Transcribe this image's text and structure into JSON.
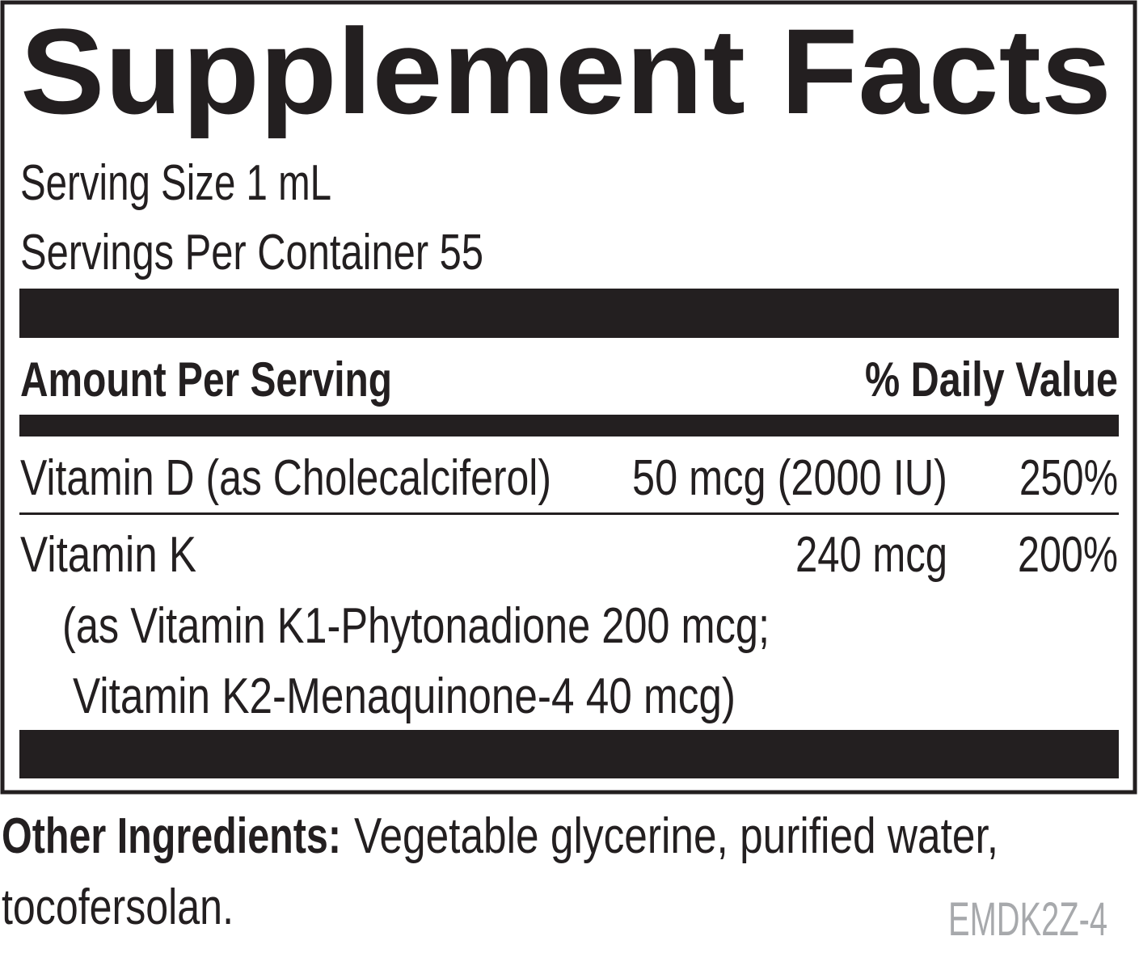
{
  "title": "Supplement Facts",
  "serving_size": "Serving Size 1 mL",
  "servings_per_container": "Servings Per Container 55",
  "table": {
    "header": [
      "Amount Per Serving",
      "% Daily Value"
    ],
    "rows": [
      [
        "Vitamin D (as Cholecalciferol)",
        "50 mcg (2000 IU)",
        "250%"
      ],
      [
        "Vitamin K",
        "240 mcg",
        "200%"
      ]
    ],
    "notes": [
      "(as Vitamin K1-Phytonadione 200 mcg;",
      "Vitamin K2-Menaquinone-4 40 mcg)"
    ]
  },
  "other_ingredients": {
    "label": "Other Ingredients:",
    "lines": [
      "Vegetable glycerine, purified water,",
      "tocofersolan."
    ]
  },
  "code": "EMDK2Z-4"
}
